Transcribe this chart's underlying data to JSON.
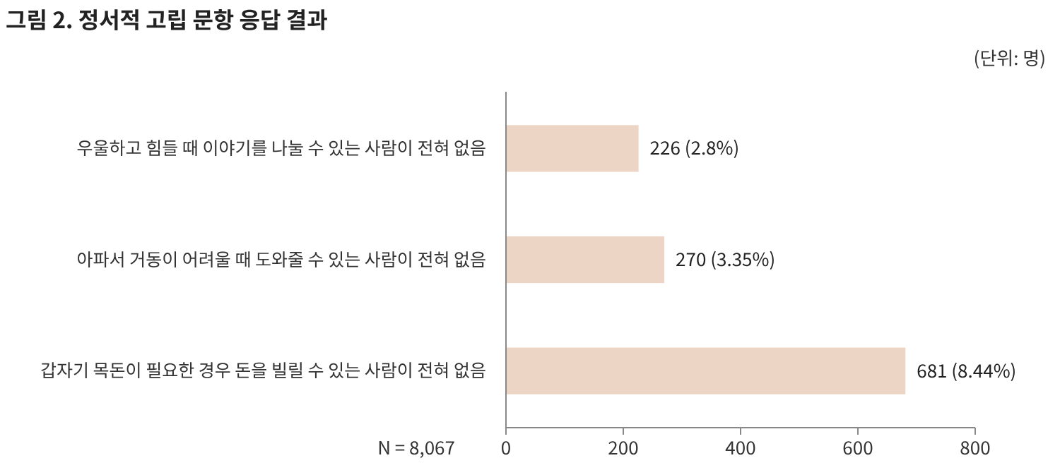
{
  "chart_data": {
    "type": "bar",
    "orientation": "horizontal",
    "title": "그림 2. 정서적 고립 문항 응답 결과",
    "categories": [
      "우울하고 힘들 때 이야기를 나눌 수 있는 사람이 전혀 없음",
      "아파서 거동이 어려울 때 도와줄 수 있는 사람이 전혀 없음",
      "갑자기 목돈이 필요한 경우 돈을 빌릴 수 있는 사람이 전혀 없음"
    ],
    "values": [
      226,
      270,
      681
    ],
    "value_labels": [
      "226 (2.8%)",
      "270 (3.35%)",
      "681 (8.44%)"
    ],
    "color": "#edd5c5",
    "xlim": [
      0,
      800
    ],
    "xticks": [
      0,
      200,
      400,
      600,
      800
    ],
    "grid": false,
    "annotations": [
      "(단위: 명)",
      "N = 8,067"
    ]
  }
}
